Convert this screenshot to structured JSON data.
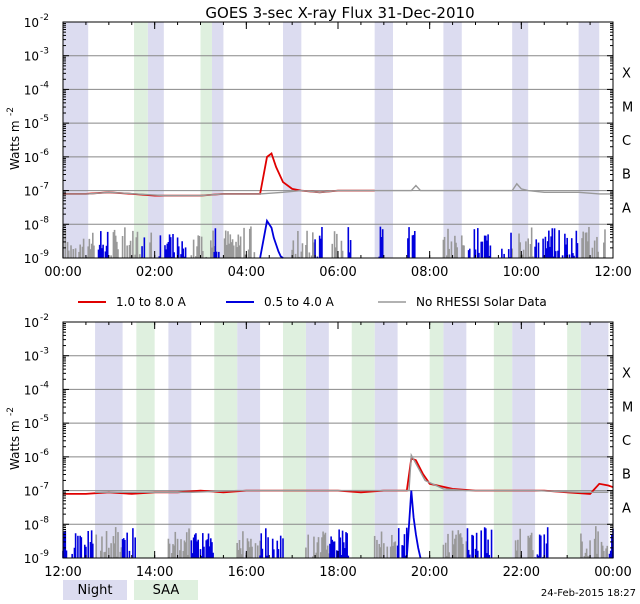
{
  "title": "GOES 3-sec X-ray Flux   31-Dec-2010",
  "ylabel": "Watts m",
  "ylabel_sup": "-2",
  "footer_date": "24-Feb-2015 18:27",
  "legend": [
    {
      "label": "1.0 to 8.0 A",
      "color": "#e00000"
    },
    {
      "label": "0.5 to 4.0 A",
      "color": "#0000dd"
    },
    {
      "label": "No RHESSI Solar Data",
      "color": "#999999"
    }
  ],
  "shading_legend": [
    {
      "label": "Night",
      "color": "#dcdcf0"
    },
    {
      "label": "SAA",
      "color": "#dff0df"
    }
  ],
  "colors": {
    "night": "#dcdcf0",
    "saa": "#dff0df",
    "grid": "#888888",
    "red": "#e00000",
    "blue": "#0000dd",
    "gray": "#999999"
  },
  "chart_data": [
    {
      "type": "line",
      "yscale": "log",
      "ylim_exp": [
        -9,
        -2
      ],
      "ytick_exps": [
        -9,
        -8,
        -7,
        -6,
        -5,
        -4,
        -3,
        -2
      ],
      "ytick_labels": [
        "10",
        "10",
        "10",
        "10",
        "10",
        "10",
        "10",
        "10"
      ],
      "flare_classes": [
        "A",
        "B",
        "C",
        "M",
        "X"
      ],
      "flare_class_exps": [
        -8,
        -7,
        -6,
        -5,
        -4
      ],
      "xlim_hours": [
        0,
        12
      ],
      "xticks": [
        0,
        2,
        4,
        6,
        8,
        10,
        12
      ],
      "xtick_labels": [
        "00:00",
        "02:00",
        "04:00",
        "06:00",
        "08:00",
        "10:00",
        "12:00"
      ],
      "night_hours": [
        [
          0.0,
          0.55
        ],
        [
          1.85,
          2.2
        ],
        [
          3.25,
          3.5
        ],
        [
          4.8,
          5.2
        ],
        [
          6.8,
          7.2
        ],
        [
          8.3,
          8.7
        ],
        [
          9.8,
          10.15
        ],
        [
          11.25,
          11.7
        ]
      ],
      "saa_hours": [
        [
          1.55,
          1.85
        ],
        [
          3.0,
          3.25
        ]
      ],
      "series": [
        {
          "name": "1.0 to 8.0 A",
          "hours": [
            0.0,
            0.5,
            1.0,
            1.5,
            2.0,
            2.5,
            3.0,
            3.5,
            4.0,
            4.3,
            4.45,
            4.55,
            4.65,
            4.8,
            5.0,
            5.2,
            5.6,
            6.0,
            6.5,
            6.8
          ],
          "exps": [
            -7.1,
            -7.1,
            -7.05,
            -7.1,
            -7.15,
            -7.15,
            -7.15,
            -7.1,
            -7.1,
            -7.1,
            -6.0,
            -5.9,
            -6.3,
            -6.75,
            -6.95,
            -7.0,
            -7.05,
            -7.0,
            -7.0,
            -7.0
          ]
        },
        {
          "name": "No RHESSI Solar Data",
          "hours": [
            0.0,
            0.55,
            1.0,
            1.6,
            2.2,
            3.0,
            3.5,
            4.3,
            4.8,
            5.2,
            5.6,
            6.0,
            6.8,
            7.2,
            7.6,
            7.7,
            7.8,
            8.3,
            9.0,
            9.8,
            9.9,
            10.0,
            10.15,
            10.5,
            11.0,
            11.25,
            11.7,
            12.0
          ],
          "exps": [
            -7.1,
            -7.1,
            -7.05,
            -7.1,
            -7.15,
            -7.15,
            -7.1,
            -7.1,
            -7.05,
            -7.0,
            -7.05,
            -7.0,
            -7.0,
            -7.0,
            -7.0,
            -6.85,
            -7.0,
            -7.0,
            -7.0,
            -7.0,
            -6.8,
            -6.95,
            -7.0,
            -7.05,
            -7.05,
            -7.05,
            -7.1,
            -7.1
          ]
        },
        {
          "name": "0.5 to 4.0 A",
          "hours": [
            4.3,
            4.45,
            4.55,
            4.6,
            4.65,
            4.7,
            4.75,
            4.8
          ],
          "exps": [
            -9.0,
            -7.9,
            -8.1,
            -8.4,
            -8.6,
            -8.8,
            -8.95,
            -9.0
          ]
        }
      ],
      "blue_noise_hours": [
        [
          0.7,
          1.0
        ],
        [
          1.7,
          1.8
        ],
        [
          2.1,
          2.7
        ],
        [
          3.3,
          3.4
        ],
        [
          5.5,
          5.7
        ],
        [
          6.2,
          6.35
        ],
        [
          6.9,
          7.0
        ],
        [
          7.5,
          7.7
        ],
        [
          8.8,
          9.8
        ],
        [
          10.3,
          11.25
        ]
      ],
      "gray_noise_hours": [
        [
          0.0,
          0.7
        ],
        [
          1.0,
          1.7
        ],
        [
          1.9,
          2.1
        ],
        [
          2.8,
          3.3
        ],
        [
          3.5,
          4.2
        ],
        [
          5.0,
          5.5
        ],
        [
          5.8,
          6.2
        ],
        [
          8.3,
          8.8
        ],
        [
          9.8,
          10.3
        ],
        [
          11.3,
          12.0
        ]
      ]
    },
    {
      "type": "line",
      "yscale": "log",
      "ylim_exp": [
        -9,
        -2
      ],
      "ytick_exps": [
        -9,
        -8,
        -7,
        -6,
        -5,
        -4,
        -3,
        -2
      ],
      "ytick_labels": [
        "10",
        "10",
        "10",
        "10",
        "10",
        "10",
        "10",
        "10"
      ],
      "flare_classes": [
        "A",
        "B",
        "C",
        "M",
        "X"
      ],
      "flare_class_exps": [
        -8,
        -7,
        -6,
        -5,
        -4
      ],
      "xlim_hours": [
        12,
        24
      ],
      "xticks": [
        12,
        14,
        16,
        18,
        20,
        22,
        24
      ],
      "xtick_labels": [
        "12:00",
        "14:00",
        "16:00",
        "18:00",
        "20:00",
        "22:00",
        "00:00"
      ],
      "night_hours": [
        [
          12.7,
          13.3
        ],
        [
          14.3,
          14.8
        ],
        [
          15.8,
          16.3
        ],
        [
          17.3,
          17.8
        ],
        [
          18.8,
          19.3
        ],
        [
          20.3,
          20.8
        ],
        [
          21.8,
          22.3
        ],
        [
          23.3,
          23.9
        ]
      ],
      "saa_hours": [
        [
          13.6,
          14.0
        ],
        [
          15.3,
          15.8
        ],
        [
          16.8,
          17.3
        ],
        [
          18.3,
          18.8
        ],
        [
          20.0,
          20.3
        ],
        [
          21.4,
          21.8
        ],
        [
          23.0,
          23.3
        ]
      ],
      "series": [
        {
          "name": "1.0 to 8.0 A",
          "hours": [
            12.0,
            12.5,
            13.0,
            13.5,
            14.0,
            14.5,
            15.0,
            15.5,
            16.0,
            16.5,
            17.0,
            17.5,
            18.0,
            18.5,
            19.0,
            19.5,
            19.6,
            19.7,
            19.85,
            20.0,
            20.5,
            21.0,
            21.5,
            22.0,
            22.5,
            23.0,
            23.5,
            23.7,
            23.9,
            24.0
          ],
          "exps": [
            -7.1,
            -7.1,
            -7.05,
            -7.1,
            -7.05,
            -7.05,
            -7.0,
            -7.05,
            -7.0,
            -7.0,
            -7.0,
            -7.0,
            -7.0,
            -7.05,
            -7.0,
            -7.0,
            -6.05,
            -6.1,
            -6.5,
            -6.8,
            -6.95,
            -7.0,
            -7.0,
            -7.0,
            -7.0,
            -7.05,
            -7.1,
            -6.8,
            -6.85,
            -6.9
          ]
        },
        {
          "name": "No RHESSI Solar Data",
          "hours": [
            12.7,
            13.3,
            14.3,
            14.8,
            15.8,
            16.3,
            17.3,
            17.8,
            18.8,
            19.3,
            19.55,
            19.6,
            19.7,
            19.9,
            20.3,
            20.8,
            21.8,
            22.3,
            23.3,
            23.9
          ],
          "exps": [
            -7.05,
            -7.05,
            -7.05,
            -7.05,
            -7.0,
            -7.0,
            -7.0,
            -7.0,
            -7.0,
            -7.0,
            -7.0,
            -5.95,
            -6.2,
            -6.7,
            -6.95,
            -7.0,
            -7.0,
            -7.0,
            -7.05,
            -7.05
          ]
        },
        {
          "name": "0.5 to 4.0 A",
          "hours": [
            19.5,
            19.6,
            19.65,
            19.7,
            19.75,
            19.8
          ],
          "exps": [
            -9.0,
            -7.0,
            -7.8,
            -8.3,
            -8.7,
            -9.0
          ]
        }
      ],
      "blue_noise_hours": [
        [
          12.0,
          12.7
        ],
        [
          13.3,
          13.6
        ],
        [
          14.8,
          15.3
        ],
        [
          16.3,
          16.8
        ],
        [
          17.8,
          18.3
        ],
        [
          19.3,
          19.5
        ],
        [
          20.8,
          21.4
        ],
        [
          22.3,
          22.6
        ],
        [
          23.9,
          24.0
        ]
      ],
      "gray_noise_hours": [
        [
          12.7,
          13.3
        ],
        [
          14.3,
          14.8
        ],
        [
          15.8,
          16.3
        ],
        [
          17.3,
          17.8
        ],
        [
          18.8,
          19.3
        ],
        [
          20.3,
          20.8
        ],
        [
          21.8,
          22.3
        ],
        [
          23.3,
          23.9
        ]
      ]
    }
  ]
}
